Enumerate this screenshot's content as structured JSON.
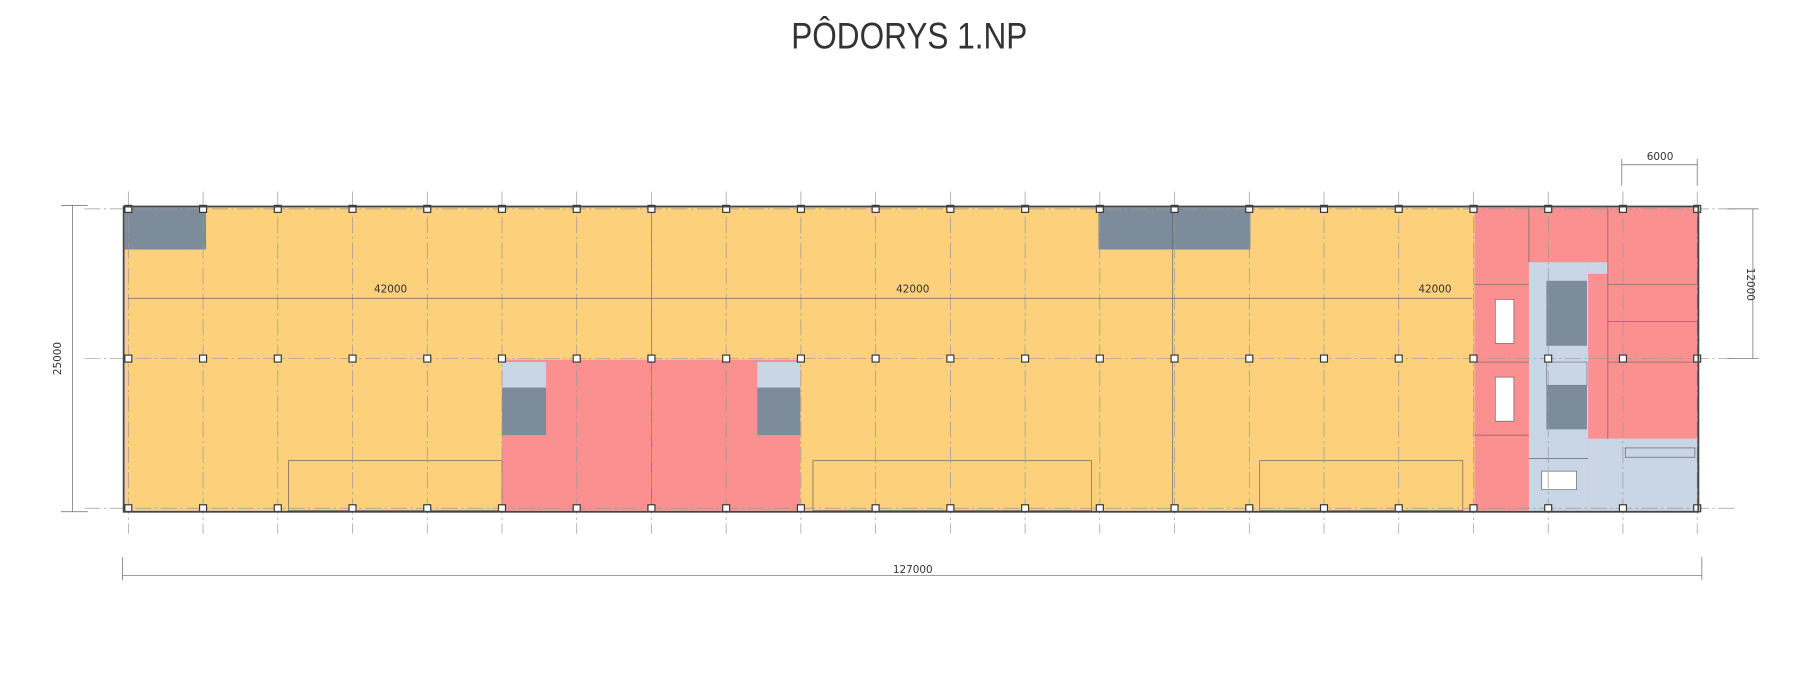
{
  "header": {
    "title": "PÔDORYS 1.NP"
  },
  "dimensions": {
    "top_right": "6000",
    "right": "12000",
    "left": "25000",
    "bays": [
      "42000",
      "42000",
      "42000"
    ],
    "total": "127000"
  }
}
